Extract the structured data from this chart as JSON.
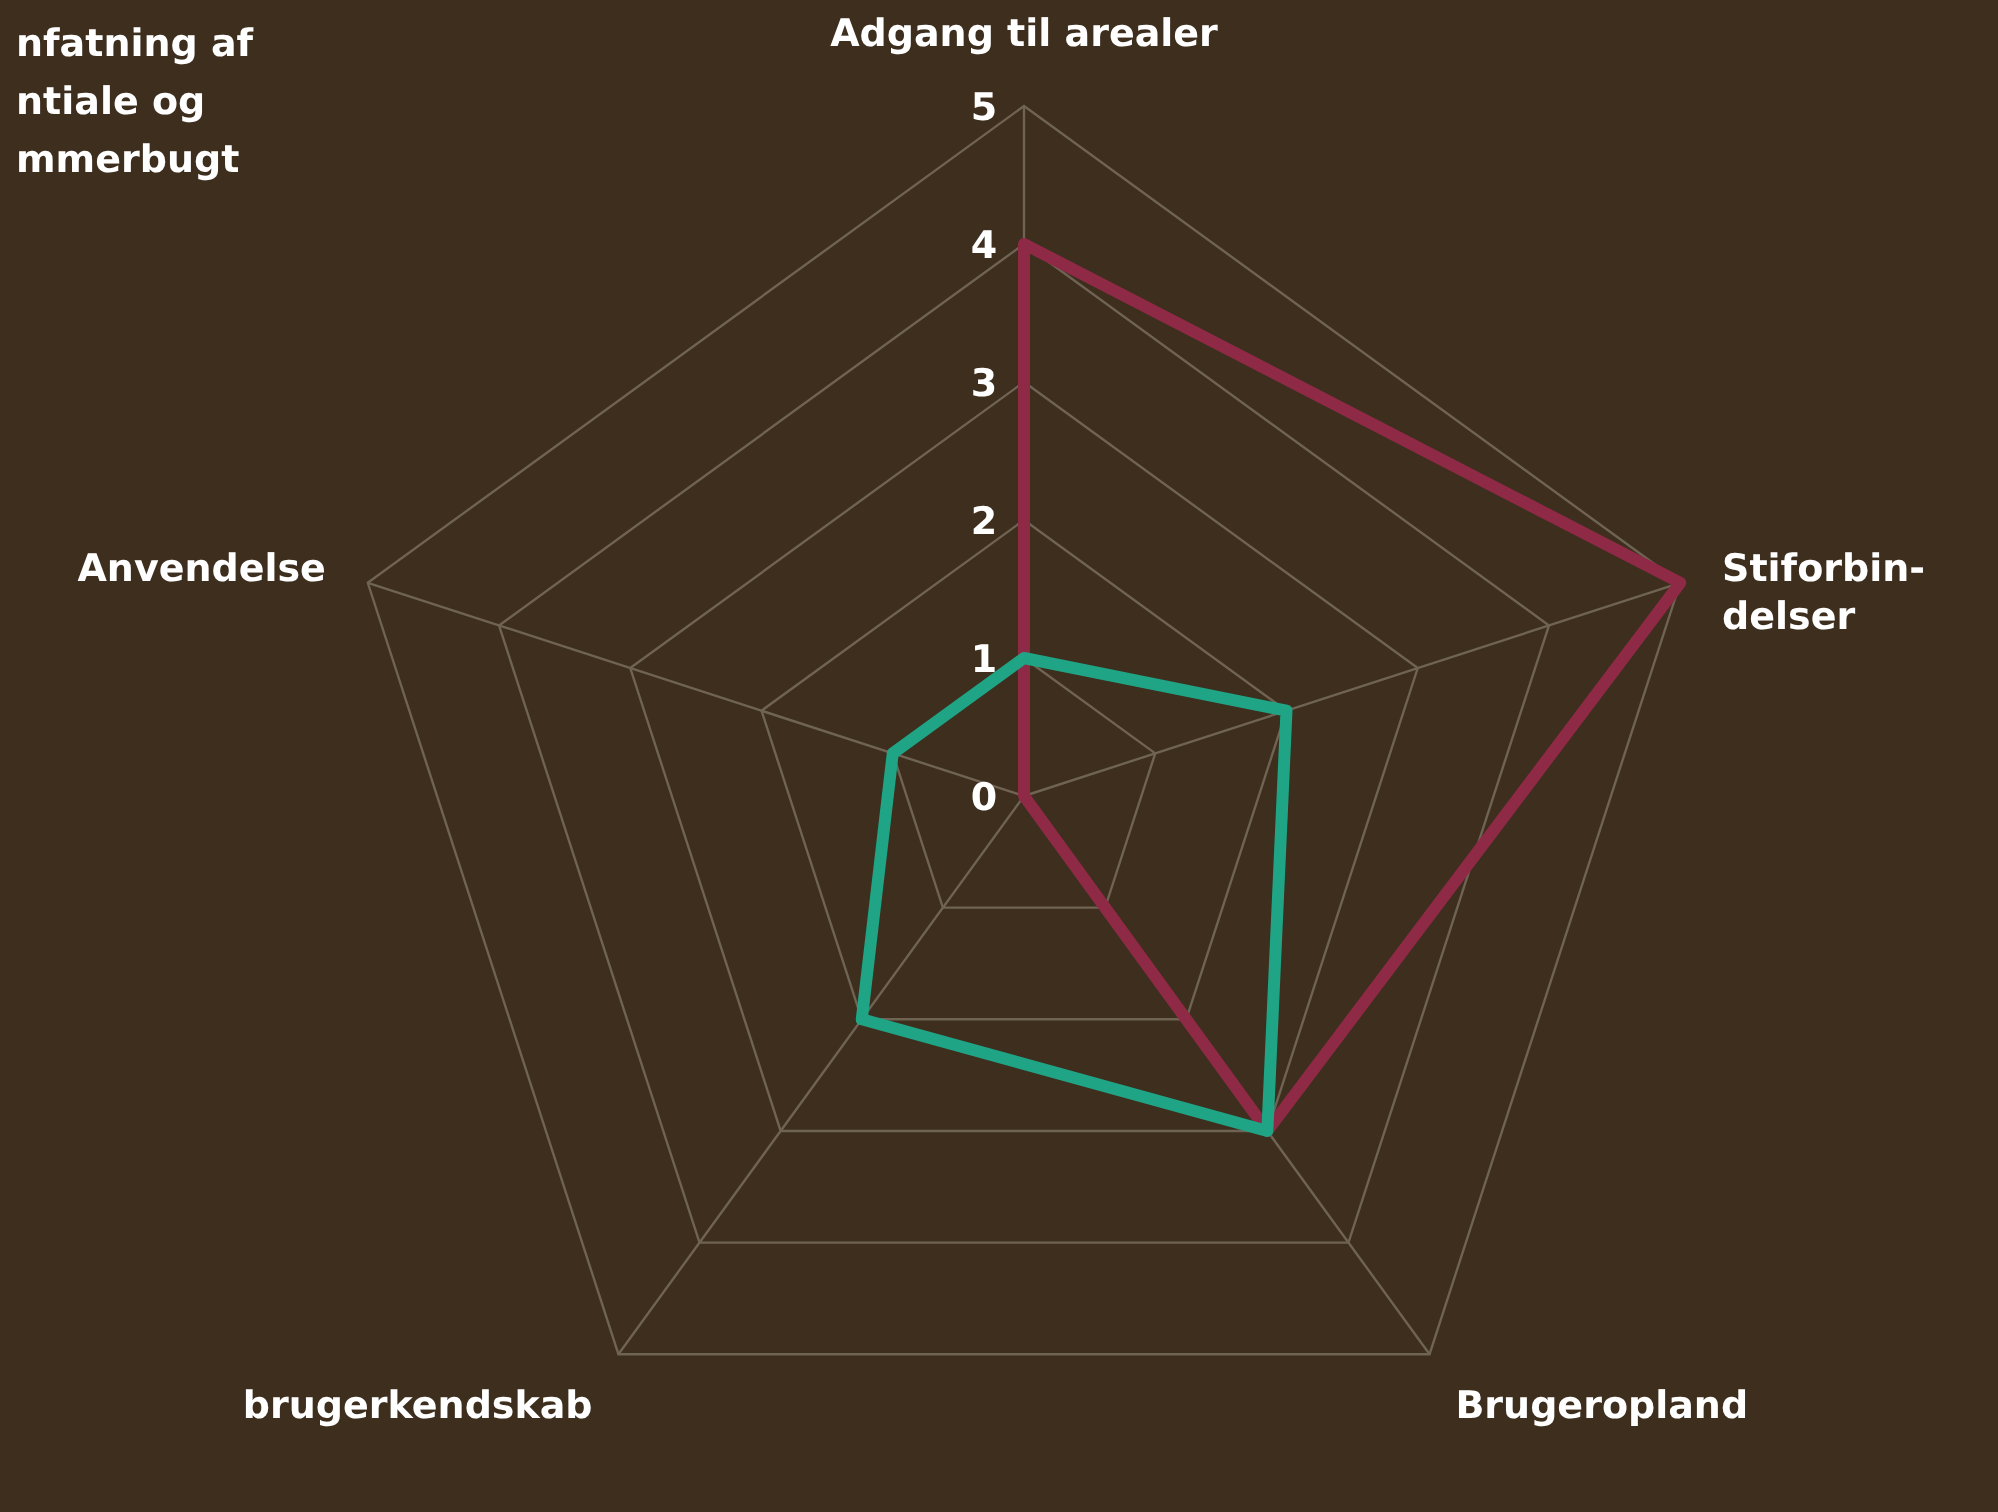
{
  "chart_data": {
    "type": "radar",
    "title": "nfatning af\nntiale og\nmmerbugt",
    "categories": [
      "Adgang til arealer",
      "Stiforbin-\ndelser",
      "Brugeropland",
      "brugerkendskab",
      "Anvendelse"
    ],
    "series": [
      {
        "color": "#8e2a45",
        "values": [
          4,
          5,
          3,
          0,
          0
        ]
      },
      {
        "color": "#1fa585",
        "values": [
          1,
          2,
          3,
          2,
          1
        ]
      }
    ],
    "ylim": [
      0,
      5
    ],
    "yticks": [
      0,
      1,
      2,
      3,
      4,
      5
    ],
    "grid": true,
    "marker": "none"
  }
}
